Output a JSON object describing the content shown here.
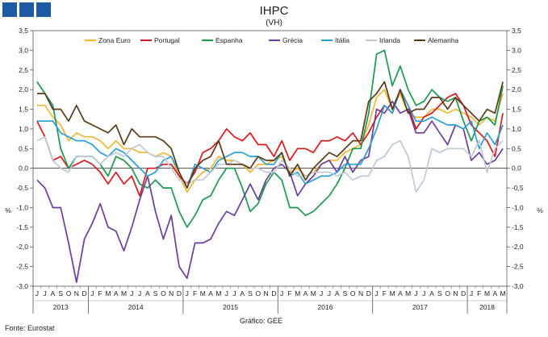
{
  "chart_data": {
    "type": "line",
    "title": "IHPC",
    "subtitle": "(VH)",
    "ylabel_left": "%",
    "ylabel_right": "%",
    "ylim": [
      -3.0,
      3.5
    ],
    "yticks": [
      "3,5",
      "3,0",
      "2,5",
      "2,0",
      "1,5",
      "1,0",
      "0,5",
      "0,0",
      "-0,5",
      "-1,0",
      "-1,5",
      "-2,0",
      "-2,5",
      "-3,0"
    ],
    "yticks_right": [
      "3,5",
      "3,0",
      "2,5",
      "2,0",
      "1,5",
      "1,0",
      "0,5",
      "0,0",
      "-0,5",
      "-1,0",
      "-1,5",
      "-2,0",
      "-2,5",
      "-3,0"
    ],
    "months": [
      "J",
      "J",
      "A",
      "S",
      "O",
      "N",
      "D",
      "J",
      "F",
      "M",
      "A",
      "M",
      "J",
      "J",
      "A",
      "S",
      "O",
      "N",
      "D",
      "J",
      "F",
      "M",
      "A",
      "M",
      "J",
      "J",
      "A",
      "S",
      "O",
      "N",
      "D",
      "J",
      "F",
      "M",
      "A",
      "M",
      "J",
      "J",
      "A",
      "S",
      "O",
      "N",
      "D",
      "J",
      "F",
      "M",
      "A",
      "M",
      "J",
      "J",
      "A",
      "S",
      "O",
      "N",
      "D",
      "J",
      "F",
      "M",
      "A",
      "M"
    ],
    "years": [
      {
        "label": "2013",
        "start": 0,
        "end": 6
      },
      {
        "label": "2014",
        "start": 7,
        "end": 18
      },
      {
        "label": "2015",
        "start": 19,
        "end": 30
      },
      {
        "label": "2016",
        "start": 31,
        "end": 42
      },
      {
        "label": "2017",
        "start": 43,
        "end": 54
      },
      {
        "label": "2018",
        "start": 55,
        "end": 59
      }
    ],
    "series": [
      {
        "name": "Zona Euro",
        "color": "#f2b632",
        "values": [
          1.6,
          1.6,
          1.3,
          1.1,
          0.7,
          0.9,
          0.8,
          0.8,
          0.7,
          0.5,
          0.7,
          0.5,
          0.5,
          0.4,
          0.4,
          0.3,
          0.4,
          0.3,
          -0.2,
          -0.6,
          -0.3,
          -0.1,
          0.0,
          0.3,
          0.2,
          0.2,
          0.1,
          -0.1,
          0.1,
          0.1,
          0.2,
          0.3,
          -0.1,
          0.0,
          -0.2,
          -0.1,
          0.1,
          0.2,
          0.2,
          0.4,
          0.5,
          0.6,
          1.1,
          1.8,
          2.0,
          1.5,
          1.9,
          1.4,
          1.3,
          1.3,
          1.5,
          1.5,
          1.4,
          1.5,
          1.4,
          1.3,
          1.1,
          1.3,
          1.2,
          1.9
        ]
      },
      {
        "name": "Portugal",
        "color": "#d7191c",
        "values": [
          1.2,
          0.8,
          0.2,
          0.3,
          0.0,
          0.1,
          0.2,
          0.1,
          -0.1,
          -0.4,
          -0.1,
          -0.4,
          -0.2,
          -0.7,
          0.0,
          0.0,
          0.1,
          0.1,
          -0.2,
          -0.4,
          -0.1,
          0.4,
          0.5,
          0.7,
          1.0,
          0.8,
          0.7,
          0.9,
          0.6,
          0.6,
          0.3,
          0.7,
          0.2,
          0.5,
          0.5,
          0.4,
          0.7,
          0.7,
          0.8,
          0.7,
          0.9,
          0.6,
          0.9,
          1.3,
          1.6,
          1.4,
          2.0,
          1.6,
          1.0,
          1.3,
          1.4,
          1.6,
          1.8,
          1.9,
          1.6,
          1.1,
          0.9,
          0.7,
          0.3,
          1.4
        ]
      },
      {
        "name": "Espanha",
        "color": "#1a9850",
        "values": [
          2.2,
          1.9,
          1.6,
          0.5,
          0.0,
          0.3,
          0.3,
          0.3,
          0.1,
          -0.2,
          0.3,
          0.2,
          0.0,
          -0.4,
          -0.5,
          -0.3,
          -0.5,
          -0.5,
          -1.1,
          -1.5,
          -1.2,
          -0.8,
          -0.7,
          -0.3,
          0.0,
          0.0,
          -0.5,
          -1.1,
          -0.9,
          -0.4,
          -0.1,
          -0.3,
          -1.0,
          -1.0,
          -1.2,
          -1.1,
          -0.9,
          -0.7,
          -0.4,
          0.0,
          0.5,
          0.5,
          1.4,
          2.9,
          3.0,
          2.1,
          2.6,
          2.0,
          1.6,
          1.7,
          2.0,
          1.8,
          1.7,
          1.8,
          1.2,
          0.7,
          1.2,
          1.3,
          1.1,
          2.1
        ]
      },
      {
        "name": "Grécia",
        "color": "#6a3d9a",
        "values": [
          -0.3,
          -0.5,
          -1.0,
          -1.0,
          -1.9,
          -2.9,
          -1.8,
          -1.4,
          -0.9,
          -1.5,
          -1.6,
          -2.1,
          -1.5,
          -0.8,
          -0.2,
          -1.1,
          -1.8,
          -1.2,
          -2.5,
          -2.8,
          -1.9,
          -1.9,
          -1.8,
          -1.4,
          -1.1,
          -1.2,
          -0.8,
          -0.4,
          -0.8,
          -0.3,
          0.0,
          0.1,
          -0.1,
          -0.7,
          -0.4,
          -0.2,
          0.1,
          0.2,
          -0.1,
          0.3,
          -0.1,
          0.2,
          0.3,
          1.5,
          1.4,
          1.7,
          1.4,
          1.5,
          0.9,
          0.9,
          1.2,
          0.9,
          0.6,
          1.1,
          1.0,
          0.2,
          0.4,
          0.1,
          0.2,
          0.5
        ]
      },
      {
        "name": "Itália",
        "color": "#2b9fd4",
        "values": [
          1.2,
          1.2,
          1.2,
          0.9,
          0.8,
          0.7,
          0.7,
          0.6,
          0.4,
          0.3,
          0.5,
          0.4,
          0.2,
          0.0,
          -0.2,
          -0.1,
          0.2,
          0.3,
          -0.1,
          -0.5,
          0.1,
          0.0,
          -0.1,
          0.2,
          0.3,
          0.4,
          0.4,
          0.3,
          0.3,
          0.1,
          0.1,
          0.4,
          -0.2,
          -0.1,
          -0.4,
          -0.3,
          -0.2,
          -0.2,
          -0.1,
          0.1,
          0.1,
          0.1,
          0.5,
          1.0,
          1.6,
          1.4,
          2.0,
          1.6,
          1.2,
          1.2,
          1.3,
          1.2,
          1.1,
          1.1,
          1.0,
          1.2,
          0.5,
          0.9,
          0.6,
          1.1
        ]
      },
      {
        "name": "Irlanda",
        "color": "#bdc9d6",
        "values": [
          0.7,
          0.8,
          0.2,
          0.0,
          -0.1,
          0.3,
          0.3,
          0.3,
          0.1,
          0.3,
          0.4,
          0.3,
          0.5,
          0.6,
          0.4,
          0.3,
          0.3,
          0.0,
          -0.3,
          -0.4,
          -0.3,
          -0.3,
          -0.1,
          0.1,
          0.1,
          0.2,
          0.1,
          0.0,
          0.0,
          -0.1,
          -0.1,
          0.2,
          0.0,
          -0.2,
          -0.2,
          -0.1,
          -0.1,
          -0.1,
          -0.2,
          -0.1,
          -0.3,
          -0.2,
          -0.2,
          0.2,
          0.3,
          0.6,
          0.7,
          0.3,
          -0.6,
          -0.3,
          0.5,
          0.4,
          0.5,
          0.5,
          0.5,
          0.3,
          0.7,
          -0.1,
          0.5,
          0.7
        ]
      },
      {
        "name": "Alemanha",
        "color": "#5b3a1a",
        "values": [
          1.9,
          1.9,
          1.5,
          1.5,
          1.2,
          1.6,
          1.2,
          1.1,
          1.0,
          0.9,
          1.1,
          0.6,
          1.0,
          0.8,
          0.8,
          0.8,
          0.7,
          0.5,
          -0.1,
          -0.5,
          0.0,
          0.2,
          0.3,
          0.7,
          0.1,
          0.1,
          0.1,
          0.0,
          0.3,
          0.2,
          0.2,
          0.4,
          -0.2,
          0.1,
          -0.3,
          0.0,
          0.2,
          0.4,
          0.3,
          0.5,
          0.7,
          0.7,
          1.7,
          1.9,
          2.2,
          1.5,
          2.0,
          1.4,
          1.5,
          1.5,
          1.8,
          1.8,
          1.5,
          1.8,
          1.6,
          1.4,
          1.2,
          1.5,
          1.4,
          2.2
        ]
      }
    ]
  },
  "header_squares": [
    "",
    "",
    ""
  ],
  "footer": {
    "source": "Fonte: Eurostat",
    "credit": "Gráfico: GEE"
  }
}
